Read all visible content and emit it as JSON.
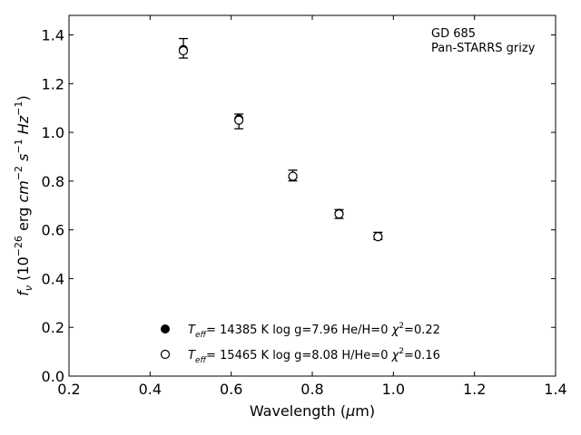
{
  "chart_data": {
    "type": "scatter",
    "xlabel": "Wavelength (μm)",
    "ylabel": "f_ν (10^-26 erg cm^-2 s^-1 Hz^-1)",
    "xlim": [
      0.2,
      1.4
    ],
    "ylim": [
      0.0,
      1.48
    ],
    "xticks": [
      "0.2",
      "0.4",
      "0.6",
      "0.8",
      "1.0",
      "1.2",
      "1.4"
    ],
    "yticks": [
      "0.0",
      "0.2",
      "0.4",
      "0.6",
      "0.8",
      "1.0",
      "1.2",
      "1.4"
    ],
    "grid": false,
    "annotation": [
      "GD 685",
      "Pan-STARRS grizy"
    ],
    "observed": {
      "x": [
        0.482,
        0.619,
        0.752,
        0.866,
        0.962
      ],
      "y": [
        1.345,
        1.045,
        0.823,
        0.665,
        0.575
      ],
      "yerr": [
        0.04,
        0.03,
        0.022,
        0.018,
        0.015
      ]
    },
    "series": [
      {
        "name": "T_eff= 14385 K  log g=7.96  He/H=0  χ²=0.22",
        "marker": "filled-circle",
        "x": [
          0.482,
          0.619,
          0.752,
          0.866,
          0.962
        ],
        "y": [
          1.34,
          1.055,
          0.818,
          0.668,
          0.573
        ]
      },
      {
        "name": "T_eff= 15465 K  log g=8.08  H/He=0  χ²=0.16",
        "marker": "open-circle",
        "x": [
          0.482,
          0.619,
          0.752,
          0.866,
          0.962
        ],
        "y": [
          1.335,
          1.05,
          0.82,
          0.665,
          0.572
        ]
      }
    ],
    "legend": {
      "placement": "bottom-center",
      "entries": [
        {
          "marker": "filled-circle",
          "teff": "14385 K",
          "logg": "log g=7.96",
          "comp": "He/H=0",
          "chi": "=0.22"
        },
        {
          "marker": "open-circle",
          "teff": "15465 K",
          "logg": "log g=8.08",
          "comp": "H/He=0",
          "chi": "=0.16"
        }
      ]
    }
  }
}
